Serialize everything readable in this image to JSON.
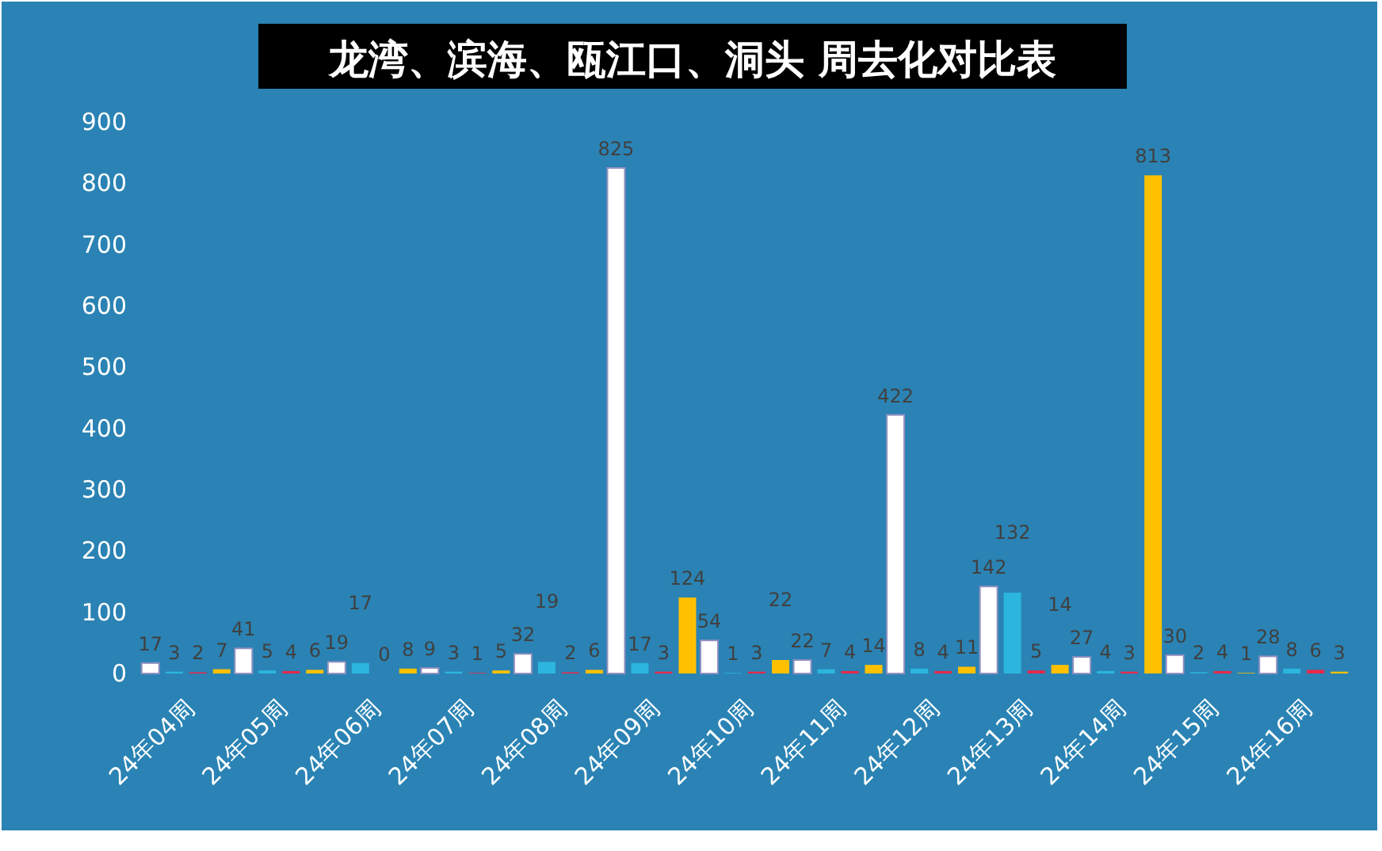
{
  "chart_data": {
    "type": "bar",
    "title": "龙湾、滨海、瓯江口、洞头 周去化对比表",
    "categories": [
      "24年04周",
      "24年05周",
      "24年06周",
      "24年07周",
      "24年08周",
      "24年09周",
      "24年10周",
      "24年11周",
      "24年12周",
      "24年13周",
      "24年14周",
      "24年15周",
      "24年16周"
    ],
    "series": [
      {
        "color": "#ffffff",
        "values": [
          17,
          41,
          19,
          9,
          32,
          825,
          54,
          22,
          422,
          142,
          27,
          30,
          28
        ]
      },
      {
        "color": "#2cb5de",
        "values": [
          3,
          5,
          17,
          3,
          19,
          17,
          1,
          7,
          8,
          132,
          4,
          2,
          8
        ]
      },
      {
        "color": "#e8284a",
        "values": [
          2,
          4,
          0,
          1,
          2,
          3,
          3,
          4,
          4,
          5,
          3,
          4,
          6
        ]
      },
      {
        "color": "#ffc000",
        "values": [
          7,
          6,
          8,
          5,
          6,
          124,
          22,
          14,
          11,
          14,
          813,
          1,
          3
        ]
      }
    ],
    "ylim": [
      0,
      900
    ],
    "yticks": [
      0,
      100,
      200,
      300,
      400,
      500,
      600,
      700,
      800,
      900
    ],
    "data_labels": true,
    "grid": false
  }
}
